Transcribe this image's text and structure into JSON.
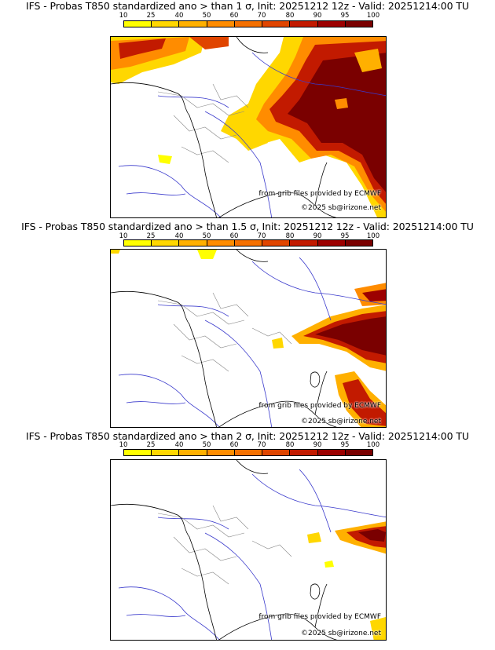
{
  "colorbar": {
    "labels": [
      "10",
      "25",
      "40",
      "50",
      "60",
      "70",
      "80",
      "90",
      "95",
      "100"
    ],
    "colors": [
      "#ffff00",
      "#ffd700",
      "#ffb000",
      "#ff8c00",
      "#f57000",
      "#e04500",
      "#c21a00",
      "#9c0000",
      "#7a0000"
    ]
  },
  "panels": [
    {
      "title": "IFS - Probas T850  standardized ano > than 1 σ, Init: 20251212 12z - Valid: 20251214:00 TU",
      "source": "from grib files provided by ECMWF",
      "copyright": "©2025 sb@irizone.net"
    },
    {
      "title": "IFS - Probas T850  standardized ano > than 1.5 σ, Init: 20251212 12z - Valid: 20251214:00 TU",
      "source": "from grib files provided by ECMWF",
      "copyright": "©2025 sb@irizone.net"
    },
    {
      "title": "IFS - Probas T850  standardized ano > than 2 σ, Init: 20251212 12z - Valid: 20251214:00 TU",
      "source": "from grib files provided by ECMWF",
      "copyright": "©2025 sb@irizone.net"
    }
  ]
}
